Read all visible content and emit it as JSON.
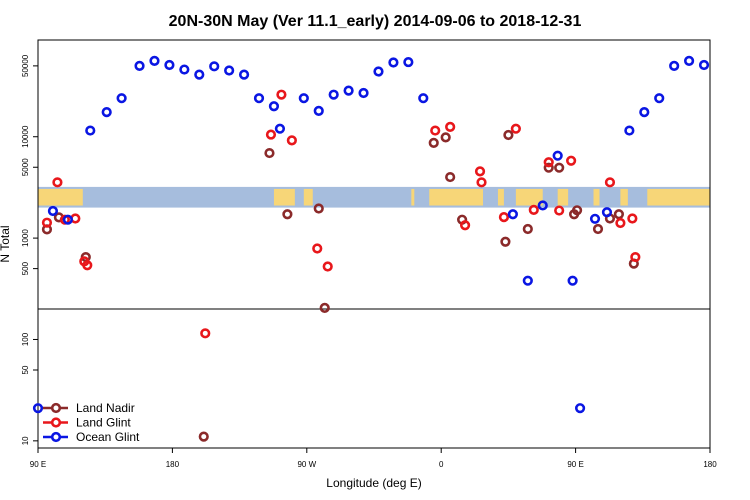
{
  "chart_data": {
    "type": "scatter",
    "title": "20N-30N May (Ver 11.1_early)   2014-09-06 to 2018-12-31",
    "xlabel": "Longitude (deg E)",
    "ylabel": "N Total",
    "x_ticks": [
      {
        "value": 90,
        "label": "90 E"
      },
      {
        "value": 180,
        "label": "180"
      },
      {
        "value": 270,
        "label": "90 W"
      },
      {
        "value": 360,
        "label": "0"
      },
      {
        "value": 450,
        "label": "90 E"
      },
      {
        "value": 540,
        "label": "180"
      }
    ],
    "xlim": [
      90,
      540
    ],
    "y_scale": "log",
    "ylim": [
      8.5,
      90000
    ],
    "y_ticks": [
      {
        "value": 10,
        "label": "10"
      },
      {
        "value": 50,
        "label": "50"
      },
      {
        "value": 100,
        "label": "100"
      },
      {
        "value": 500,
        "label": "500"
      },
      {
        "value": 1000,
        "label": "1000"
      },
      {
        "value": 5000,
        "label": "5000"
      },
      {
        "value": 10000,
        "label": "10000"
      },
      {
        "value": 50000,
        "label": "50000"
      }
    ],
    "reference_line": 200,
    "map_band_y": [
      2000,
      3200
    ],
    "legend_position": "bottom-left",
    "series": [
      {
        "name": "Land Nadir",
        "color": "#8b2a2a",
        "points": [
          [
            96,
            1220
          ],
          [
            104,
            1600
          ],
          [
            122,
            650
          ],
          [
            201,
            11
          ],
          [
            245,
            6900
          ],
          [
            257,
            1720
          ],
          [
            278,
            1960
          ],
          [
            282,
            205
          ],
          [
            355,
            8700
          ],
          [
            363,
            9850
          ],
          [
            366,
            4000
          ],
          [
            374,
            1520
          ],
          [
            403,
            920
          ],
          [
            405,
            10400
          ],
          [
            418,
            1230
          ],
          [
            432,
            4950
          ],
          [
            439,
            4950
          ],
          [
            449,
            1720
          ],
          [
            451,
            1880
          ],
          [
            465,
            1230
          ],
          [
            473,
            1560
          ],
          [
            479,
            1720
          ],
          [
            489,
            560
          ]
        ]
      },
      {
        "name": "Land Glint",
        "color": "#e8171b",
        "points": [
          [
            96,
            1420
          ],
          [
            103,
            3550
          ],
          [
            108,
            1520
          ],
          [
            115,
            1560
          ],
          [
            121,
            590
          ],
          [
            123,
            540
          ],
          [
            202,
            115
          ],
          [
            246,
            10500
          ],
          [
            253,
            26000
          ],
          [
            260,
            9200
          ],
          [
            277,
            790
          ],
          [
            284,
            525
          ],
          [
            356,
            11500
          ],
          [
            366,
            12500
          ],
          [
            376,
            1340
          ],
          [
            386,
            4550
          ],
          [
            387,
            3550
          ],
          [
            402,
            1610
          ],
          [
            410,
            12000
          ],
          [
            422,
            1900
          ],
          [
            432,
            5600
          ],
          [
            439,
            1870
          ],
          [
            447,
            5800
          ],
          [
            473,
            3550
          ],
          [
            480,
            1410
          ],
          [
            488,
            1560
          ],
          [
            490,
            650
          ]
        ]
      },
      {
        "name": "Ocean Glint",
        "color": "#0a16e3",
        "points": [
          [
            90,
            21
          ],
          [
            100,
            1850
          ],
          [
            110,
            1520
          ],
          [
            125,
            11500
          ],
          [
            136,
            17500
          ],
          [
            146,
            24000
          ],
          [
            158,
            50000
          ],
          [
            168,
            56000
          ],
          [
            178,
            51000
          ],
          [
            188,
            46000
          ],
          [
            198,
            41000
          ],
          [
            208,
            49500
          ],
          [
            218,
            45000
          ],
          [
            228,
            41000
          ],
          [
            238,
            24000
          ],
          [
            248,
            20000
          ],
          [
            252,
            12000
          ],
          [
            268,
            24000
          ],
          [
            278,
            18000
          ],
          [
            288,
            26000
          ],
          [
            298,
            28500
          ],
          [
            308,
            27000
          ],
          [
            318,
            44000
          ],
          [
            328,
            54000
          ],
          [
            338,
            54500
          ],
          [
            348,
            24000
          ],
          [
            408,
            1720
          ],
          [
            418,
            380
          ],
          [
            428,
            2100
          ],
          [
            438,
            6500
          ],
          [
            448,
            380
          ],
          [
            453,
            21
          ],
          [
            463,
            1550
          ],
          [
            471,
            1800
          ],
          [
            486,
            11500
          ],
          [
            496,
            17500
          ],
          [
            506,
            24000
          ],
          [
            516,
            50000
          ],
          [
            526,
            56000
          ],
          [
            536,
            51000
          ]
        ]
      }
    ]
  }
}
